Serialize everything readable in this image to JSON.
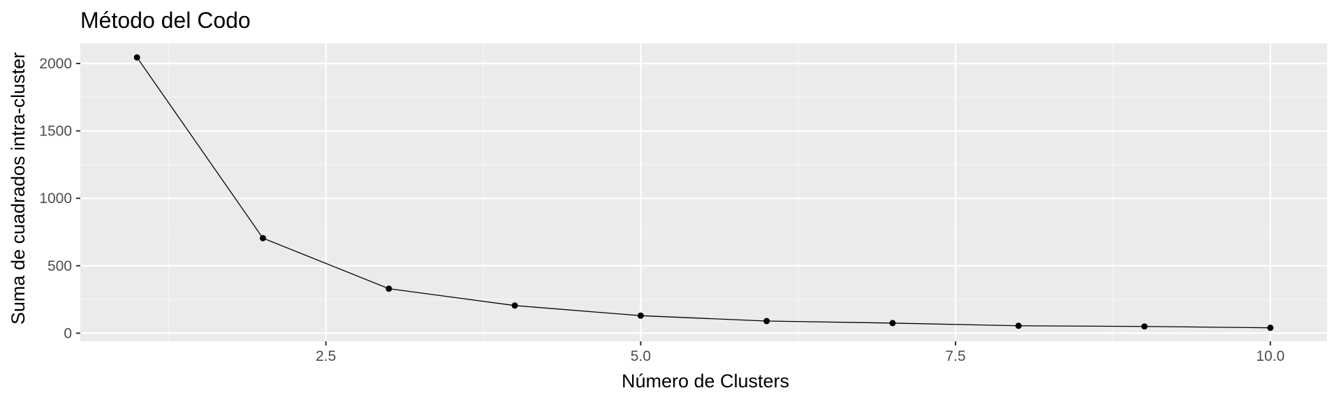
{
  "chart_data": {
    "type": "line",
    "title": "Método del Codo",
    "xlabel": "Número de Clusters",
    "ylabel": "Suma de cuadrados intra-cluster",
    "x": [
      1,
      2,
      3,
      4,
      5,
      6,
      7,
      8,
      9,
      10
    ],
    "series": [
      {
        "values": [
          2045,
          705,
          330,
          205,
          130,
          90,
          75,
          55,
          50,
          40
        ]
      }
    ],
    "xlim": [
      0.55,
      10.45
    ],
    "ylim": [
      -60,
      2150
    ],
    "x_ticks": [
      2.5,
      5.0,
      7.5,
      10.0
    ],
    "x_tick_labels": [
      "2.5",
      "5.0",
      "7.5",
      "10.0"
    ],
    "y_ticks": [
      0,
      500,
      1000,
      1500,
      2000
    ],
    "y_tick_labels": [
      "0",
      "500",
      "1000",
      "1500",
      "2000"
    ],
    "grid": true,
    "theme": "ggplot2 grey",
    "colors": {
      "panel_background": "#EBEBEB",
      "grid_major": "#FFFFFF",
      "grid_minor": "#F7F7F7",
      "line": "#000000",
      "point": "#000000",
      "tick_label": "#4D4D4D",
      "tick_mark": "#333333"
    }
  }
}
